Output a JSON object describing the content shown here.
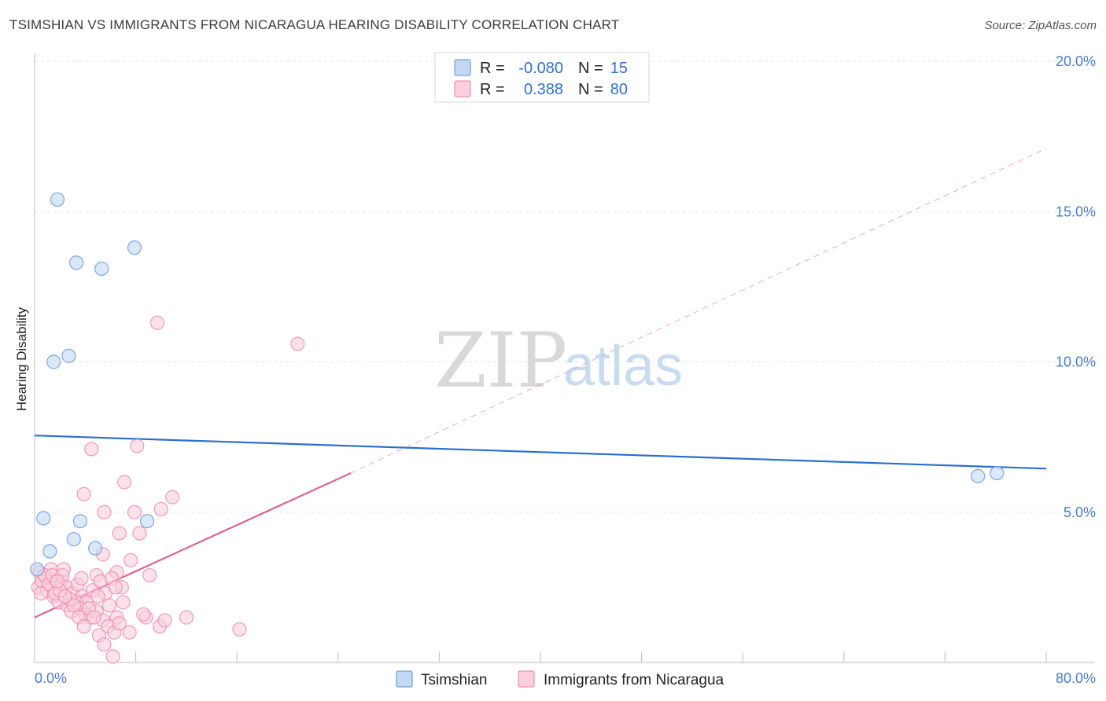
{
  "title": "TSIMSHIAN VS IMMIGRANTS FROM NICARAGUA HEARING DISABILITY CORRELATION CHART",
  "source": "Source: ZipAtlas.com",
  "watermark": {
    "zip": "ZIP",
    "atlas": "atlas"
  },
  "chart_data": {
    "type": "scatter",
    "ylabel": "Hearing Disability",
    "xlim": [
      0,
      80
    ],
    "ylim": [
      0,
      20
    ],
    "x_tick_labels": [
      "0.0%",
      "80.0%"
    ],
    "y_ticks": [
      5,
      10,
      15,
      20
    ],
    "y_tick_labels": [
      "5.0%",
      "10.0%",
      "15.0%",
      "20.0%"
    ],
    "grid": true,
    "legend": {
      "position": "top-center",
      "entries": [
        {
          "r_label": "R =",
          "r_value": "-0.080",
          "n_label": "N =",
          "n_value": "15"
        },
        {
          "r_label": "R =",
          "r_value": "0.388",
          "n_label": "N =",
          "n_value": "80"
        }
      ]
    },
    "series": [
      {
        "name": "Tsimshian",
        "color": "#6fa0e0",
        "fill": "#c3d8f3",
        "line_color": "#2a6fd0",
        "trend": {
          "x0": 0,
          "y0": 7.55,
          "x1": 80,
          "y1": 6.45
        },
        "points": [
          [
            1.8,
            15.4
          ],
          [
            3.3,
            13.3
          ],
          [
            5.3,
            13.1
          ],
          [
            7.9,
            13.8
          ],
          [
            1.5,
            10.0
          ],
          [
            2.7,
            10.2
          ],
          [
            0.7,
            4.8
          ],
          [
            3.6,
            4.7
          ],
          [
            8.9,
            4.7
          ],
          [
            1.2,
            3.7
          ],
          [
            3.1,
            4.1
          ],
          [
            4.8,
            3.8
          ],
          [
            0.2,
            3.1
          ],
          [
            74.6,
            6.2
          ],
          [
            76.1,
            6.3
          ]
        ]
      },
      {
        "name": "Immigrants from Nicaragua",
        "color": "#ef8fb0",
        "fill": "#f9cfdc",
        "line_color": "#e06090",
        "trend": {
          "x0": 0,
          "y0": 1.5,
          "x1": 25,
          "y1": 6.3
        },
        "trend_ext": {
          "x0": 25,
          "y0": 6.3,
          "x1": 80,
          "y1": 17.1
        },
        "points": [
          [
            9.7,
            11.3
          ],
          [
            20.8,
            10.6
          ],
          [
            4.5,
            7.1
          ],
          [
            8.1,
            7.2
          ],
          [
            7.1,
            6.0
          ],
          [
            3.9,
            5.6
          ],
          [
            10.0,
            5.1
          ],
          [
            10.9,
            5.5
          ],
          [
            7.9,
            5.0
          ],
          [
            5.5,
            5.0
          ],
          [
            6.7,
            4.3
          ],
          [
            8.3,
            4.3
          ],
          [
            5.4,
            3.6
          ],
          [
            7.6,
            3.4
          ],
          [
            9.1,
            2.9
          ],
          [
            4.9,
            2.9
          ],
          [
            6.5,
            3.0
          ],
          [
            0.4,
            3.0
          ],
          [
            0.9,
            2.8
          ],
          [
            1.3,
            3.1
          ],
          [
            2.1,
            2.7
          ],
          [
            2.3,
            3.1
          ],
          [
            1.7,
            2.6
          ],
          [
            2.5,
            2.5
          ],
          [
            3.0,
            2.3
          ],
          [
            3.4,
            2.6
          ],
          [
            3.8,
            2.2
          ],
          [
            4.1,
            2.0
          ],
          [
            4.6,
            2.4
          ],
          [
            5.2,
            2.7
          ],
          [
            5.6,
            2.3
          ],
          [
            6.1,
            2.8
          ],
          [
            6.9,
            2.5
          ],
          [
            0.3,
            2.5
          ],
          [
            0.6,
            2.7
          ],
          [
            1.0,
            2.4
          ],
          [
            1.5,
            2.2
          ],
          [
            1.9,
            2.0
          ],
          [
            2.6,
            1.9
          ],
          [
            2.9,
            1.7
          ],
          [
            3.3,
            2.0
          ],
          [
            3.6,
            1.8
          ],
          [
            4.0,
            1.6
          ],
          [
            4.4,
            1.5
          ],
          [
            4.9,
            1.7
          ],
          [
            5.4,
            1.4
          ],
          [
            5.8,
            1.2
          ],
          [
            6.3,
            1.0
          ],
          [
            6.5,
            1.5
          ],
          [
            6.7,
            1.3
          ],
          [
            7.5,
            1.0
          ],
          [
            8.8,
            1.5
          ],
          [
            9.9,
            1.2
          ],
          [
            10.3,
            1.4
          ],
          [
            12.0,
            1.5
          ],
          [
            16.2,
            1.1
          ],
          [
            5.1,
            0.9
          ],
          [
            5.5,
            0.6
          ],
          [
            6.2,
            0.2
          ],
          [
            0.8,
            2.9
          ],
          [
            1.1,
            2.6
          ],
          [
            1.4,
            2.9
          ],
          [
            1.6,
            2.3
          ],
          [
            2.0,
            2.4
          ],
          [
            2.2,
            2.9
          ],
          [
            2.8,
            2.1
          ],
          [
            3.1,
            1.9
          ],
          [
            3.5,
            1.5
          ],
          [
            3.9,
            1.2
          ],
          [
            4.3,
            1.8
          ],
          [
            4.7,
            1.5
          ],
          [
            5.0,
            2.2
          ],
          [
            5.9,
            1.9
          ],
          [
            6.4,
            2.5
          ],
          [
            7.0,
            2.0
          ],
          [
            8.6,
            1.6
          ],
          [
            0.5,
            2.3
          ],
          [
            1.8,
            2.7
          ],
          [
            2.4,
            2.2
          ],
          [
            3.7,
            2.8
          ]
        ]
      }
    ]
  }
}
